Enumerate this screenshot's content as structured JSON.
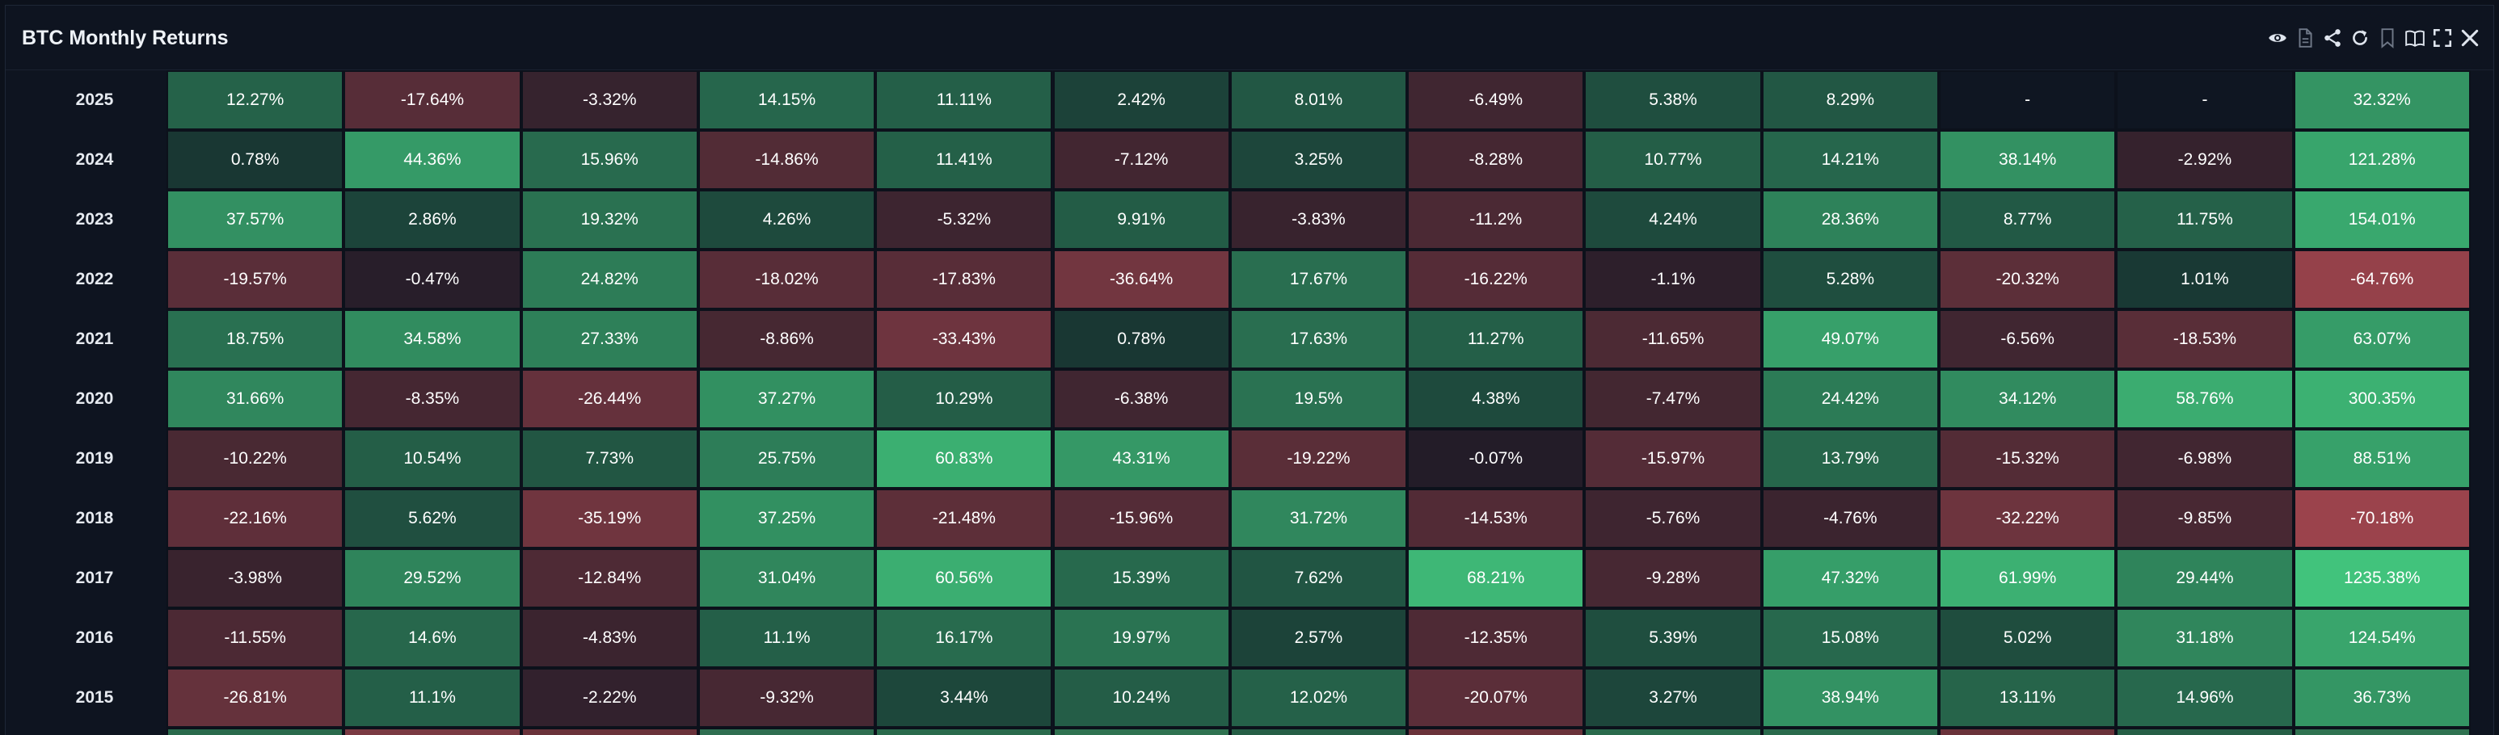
{
  "header": {
    "title": "BTC Monthly Returns"
  },
  "toolbar": {
    "icons": [
      "eye-icon",
      "document-icon",
      "share-icon",
      "refresh-icon",
      "bookmark-icon",
      "book-icon",
      "fullscreen-icon",
      "close-icon"
    ]
  },
  "colors": {
    "background": "#0e1420",
    "positive_max": "#43c97f",
    "negative_max": "#a2454e",
    "neutral": "#0f1622",
    "empty": "#0f1622"
  },
  "chart_data": {
    "type": "heatmap",
    "title": "BTC Monthly Returns",
    "rows": [
      "2025",
      "2024",
      "2023",
      "2022",
      "2021",
      "2020",
      "2019",
      "2018",
      "2017",
      "2016",
      "2015"
    ],
    "cells": [
      [
        "12.27%",
        "-17.64%",
        "-3.32%",
        "14.15%",
        "11.11%",
        "2.42%",
        "8.01%",
        "-6.49%",
        "5.38%",
        "8.29%",
        "-",
        "-",
        "32.32%"
      ],
      [
        "0.78%",
        "44.36%",
        "15.96%",
        "-14.86%",
        "11.41%",
        "-7.12%",
        "3.25%",
        "-8.28%",
        "10.77%",
        "14.21%",
        "38.14%",
        "-2.92%",
        "121.28%"
      ],
      [
        "37.57%",
        "2.86%",
        "19.32%",
        "4.26%",
        "-5.32%",
        "9.91%",
        "-3.83%",
        "-11.2%",
        "4.24%",
        "28.36%",
        "8.77%",
        "11.75%",
        "154.01%"
      ],
      [
        "-19.57%",
        "-0.47%",
        "24.82%",
        "-18.02%",
        "-17.83%",
        "-36.64%",
        "17.67%",
        "-16.22%",
        "-1.1%",
        "5.28%",
        "-20.32%",
        "1.01%",
        "-64.76%"
      ],
      [
        "18.75%",
        "34.58%",
        "27.33%",
        "-8.86%",
        "-33.43%",
        "0.78%",
        "17.63%",
        "11.27%",
        "-11.65%",
        "49.07%",
        "-6.56%",
        "-18.53%",
        "63.07%"
      ],
      [
        "31.66%",
        "-8.35%",
        "-26.44%",
        "37.27%",
        "10.29%",
        "-6.38%",
        "19.5%",
        "4.38%",
        "-7.47%",
        "24.42%",
        "34.12%",
        "58.76%",
        "300.35%"
      ],
      [
        "-10.22%",
        "10.54%",
        "7.73%",
        "25.75%",
        "60.83%",
        "43.31%",
        "-19.22%",
        "-0.07%",
        "-15.97%",
        "13.79%",
        "-15.32%",
        "-6.98%",
        "88.51%"
      ],
      [
        "-22.16%",
        "5.62%",
        "-35.19%",
        "37.25%",
        "-21.48%",
        "-15.96%",
        "31.72%",
        "-14.53%",
        "-5.76%",
        "-4.76%",
        "-32.22%",
        "-9.85%",
        "-70.18%"
      ],
      [
        "-3.98%",
        "29.52%",
        "-12.84%",
        "31.04%",
        "60.56%",
        "15.39%",
        "7.62%",
        "68.21%",
        "-9.28%",
        "47.32%",
        "61.99%",
        "29.44%",
        "1235.38%"
      ],
      [
        "-11.55%",
        "14.6%",
        "-4.83%",
        "11.1%",
        "16.17%",
        "19.97%",
        "2.57%",
        "-12.35%",
        "5.39%",
        "15.08%",
        "5.02%",
        "31.18%",
        "124.54%"
      ],
      [
        "-26.81%",
        "11.1%",
        "-2.22%",
        "-9.32%",
        "3.44%",
        "10.24%",
        "12.02%",
        "-20.07%",
        "3.27%",
        "38.94%",
        "13.11%",
        "14.96%",
        "36.73%"
      ]
    ]
  }
}
